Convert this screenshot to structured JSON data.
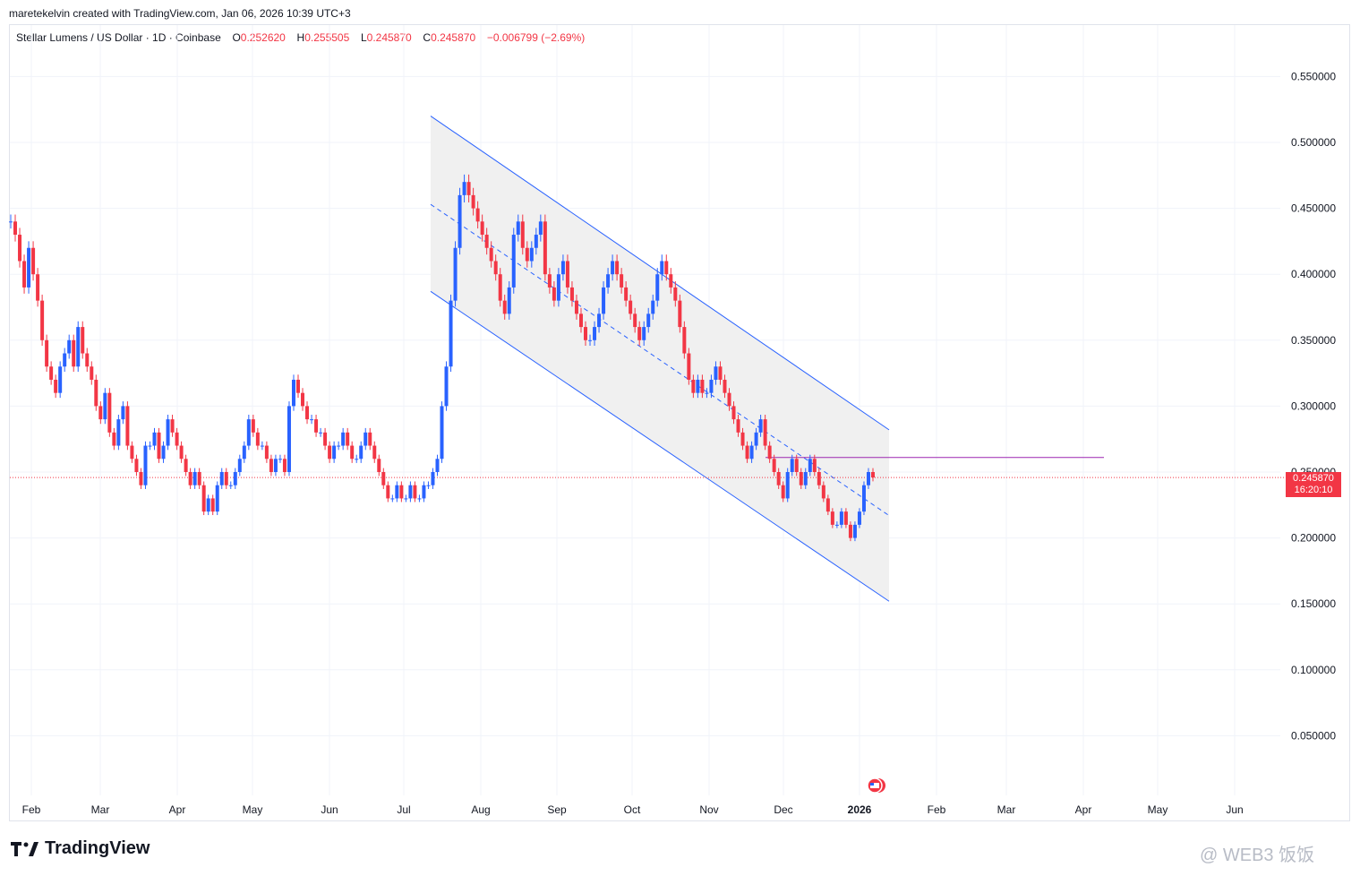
{
  "header": {
    "attribution": "maretekelvin created with TradingView.com, Jan 06, 2026 10:39 UTC+3"
  },
  "legend": {
    "symbol": "Stellar Lumens / US Dollar · 1D · Coinbase",
    "open_label": "O",
    "open": "0.252620",
    "high_label": "H",
    "high": "0.255505",
    "low_label": "L",
    "low": "0.245870",
    "close_label": "C",
    "close": "0.245870",
    "change": "−0.006799 (−2.69%)"
  },
  "price_badge": {
    "price": "0.245870",
    "countdown": "16:20:10"
  },
  "footer": {
    "brand": "TradingView",
    "watermark": "@ WEB3 饭饭"
  },
  "colors": {
    "up": "#2962ff",
    "down": "#f23645",
    "channel": "#2962ff",
    "hline": "#9c27b0",
    "channel_fill": "#f0f0f0"
  },
  "chart_data": {
    "type": "candlestick",
    "y_axis": {
      "ticks": [
        "0.550000",
        "0.500000",
        "0.450000",
        "0.400000",
        "0.350000",
        "0.300000",
        "0.250000",
        "0.200000",
        "0.150000",
        "0.100000",
        "0.050000"
      ],
      "ylim": [
        0.0,
        0.58
      ]
    },
    "x_axis": {
      "ticks": [
        "Feb",
        "Mar",
        "Apr",
        "May",
        "Jun",
        "Jul",
        "Aug",
        "Sep",
        "Oct",
        "Nov",
        "Dec",
        "2026",
        "Feb",
        "Mar",
        "Apr",
        "May",
        "Jun"
      ],
      "bold_tick": "2026"
    },
    "grid": true,
    "current_price": 0.24587,
    "horizontal_level": 0.261,
    "series": [
      {
        "month_index": 0,
        "values": [
          0.44,
          0.43,
          0.41,
          0.39,
          0.42,
          0.4,
          0.38,
          0.35,
          0.33,
          0.32,
          0.31,
          0.33,
          0.34,
          0.35,
          0.33,
          0.36,
          0.34,
          0.33,
          0.32,
          0.3,
          0.29,
          0.31,
          0.28,
          0.27,
          0.29,
          0.3,
          0.27,
          0.26,
          0.25,
          0.24,
          0.27
        ]
      },
      {
        "month_index": 1,
        "values": [
          0.27,
          0.28,
          0.26,
          0.27,
          0.29,
          0.28,
          0.27,
          0.26,
          0.25,
          0.24,
          0.25,
          0.24,
          0.22,
          0.23,
          0.22,
          0.24,
          0.25,
          0.24,
          0.24,
          0.25,
          0.26,
          0.27,
          0.29,
          0.28,
          0.27,
          0.27,
          0.26,
          0.25,
          0.26,
          0.26,
          0.25
        ]
      },
      {
        "month_index": 2,
        "values": [
          0.3,
          0.32,
          0.31,
          0.3,
          0.29,
          0.29,
          0.28,
          0.28,
          0.27,
          0.26,
          0.27,
          0.27,
          0.28,
          0.27,
          0.26,
          0.26,
          0.27,
          0.28,
          0.27,
          0.26,
          0.25,
          0.24,
          0.23,
          0.23,
          0.24,
          0.23,
          0.23,
          0.24,
          0.23,
          0.23,
          0.24
        ]
      },
      {
        "month_index": 3,
        "values": [
          0.24,
          0.25,
          0.26,
          0.3,
          0.33,
          0.38,
          0.42,
          0.46,
          0.47,
          0.46,
          0.45,
          0.44,
          0.43,
          0.42,
          0.41,
          0.4,
          0.38,
          0.37,
          0.39,
          0.43,
          0.44,
          0.42,
          0.41,
          0.42,
          0.43,
          0.44,
          0.4,
          0.39,
          0.38,
          0.4,
          0.41
        ]
      },
      {
        "month_index": 4,
        "values": [
          0.39,
          0.38,
          0.37,
          0.36,
          0.35,
          0.35,
          0.36,
          0.37,
          0.39,
          0.4,
          0.41,
          0.4,
          0.39,
          0.38,
          0.37,
          0.36,
          0.35,
          0.36,
          0.37,
          0.38,
          0.4,
          0.41,
          0.4,
          0.39,
          0.38,
          0.36,
          0.34,
          0.32,
          0.31,
          0.32,
          0.31
        ]
      },
      {
        "month_index": 5,
        "values": [
          0.31,
          0.32,
          0.33,
          0.32,
          0.31,
          0.3,
          0.29,
          0.28,
          0.27,
          0.26,
          0.27,
          0.28,
          0.29,
          0.27,
          0.26,
          0.25,
          0.24,
          0.23,
          0.25,
          0.26,
          0.25,
          0.24,
          0.25,
          0.26,
          0.25,
          0.24,
          0.23,
          0.22,
          0.21,
          0.21,
          0.22,
          0.21,
          0.2,
          0.21,
          0.22,
          0.24,
          0.25,
          0.2459
        ]
      }
    ],
    "channel": {
      "upper_start": 0.52,
      "upper_end": 0.282,
      "lower_start": 0.387,
      "lower_end": 0.152,
      "mid_start": 0.453,
      "mid_end": 0.217
    }
  }
}
